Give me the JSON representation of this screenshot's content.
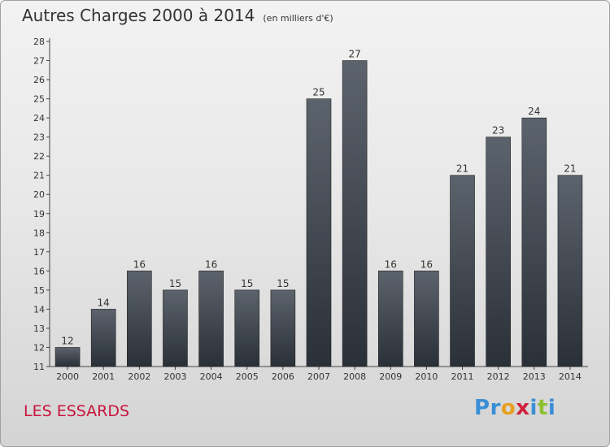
{
  "chart_data": {
    "type": "bar",
    "title": "Autres Charges 2000 à 2014",
    "subtitle": "(en milliers d'€)",
    "categories": [
      "2000",
      "2001",
      "2002",
      "2003",
      "2004",
      "2005",
      "2006",
      "2007",
      "2008",
      "2009",
      "2010",
      "2011",
      "2012",
      "2013",
      "2014"
    ],
    "values": [
      12,
      14,
      16,
      15,
      16,
      15,
      15,
      25,
      27,
      16,
      16,
      21,
      23,
      24,
      21
    ],
    "ylim": [
      11,
      28
    ],
    "yticks": [
      11,
      12,
      13,
      14,
      15,
      16,
      17,
      18,
      19,
      20,
      21,
      22,
      23,
      24,
      25,
      26,
      27,
      28
    ],
    "xlabel": "",
    "ylabel": "",
    "grid": false,
    "bar_color": "#3a4048"
  },
  "footer": {
    "location": "LES ESSARDS",
    "logo_letters": [
      {
        "char": "P",
        "color": "#3a8fd6"
      },
      {
        "char": "r",
        "color": "#3a8fd6"
      },
      {
        "char": "o",
        "color": "#e8a020"
      },
      {
        "char": "x",
        "color": "#d0203c"
      },
      {
        "char": "i",
        "color": "#3a8fd6"
      },
      {
        "char": "t",
        "color": "#8cc030"
      },
      {
        "char": "i",
        "color": "#3a8fd6"
      }
    ]
  }
}
